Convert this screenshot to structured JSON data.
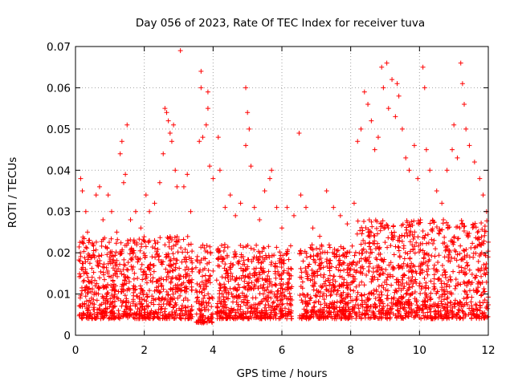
{
  "chart_data": {
    "type": "scatter",
    "title": "Day 056 of 2023, Rate Of TEC Index for receiver tuva",
    "xlabel": "GPS time / hours",
    "ylabel": "ROTI / TECUs",
    "xlim": [
      0,
      12
    ],
    "ylim": [
      0,
      0.07
    ],
    "x_ticks": [
      0,
      2,
      4,
      6,
      8,
      10,
      12
    ],
    "x_tick_labels": [
      "0",
      "2",
      "4",
      "6",
      "8",
      "10",
      "12"
    ],
    "y_ticks": [
      0,
      0.01,
      0.02,
      0.03,
      0.04,
      0.05,
      0.06,
      0.07
    ],
    "y_tick_labels": [
      "0",
      "0.01",
      "0.02",
      "0.03",
      "0.04",
      "0.05",
      "0.06",
      "0.07"
    ],
    "grid": true,
    "marker": "+",
    "color": "#ff0000",
    "series": [
      {
        "name": "ROTI",
        "points": [
          [
            0.15,
            0.038
          ],
          [
            0.2,
            0.035
          ],
          [
            0.3,
            0.03
          ],
          [
            0.35,
            0.025
          ],
          [
            0.5,
            0.022
          ],
          [
            0.6,
            0.034
          ],
          [
            0.7,
            0.036
          ],
          [
            0.8,
            0.028
          ],
          [
            0.95,
            0.034
          ],
          [
            1.05,
            0.03
          ],
          [
            1.2,
            0.025
          ],
          [
            1.3,
            0.044
          ],
          [
            1.35,
            0.047
          ],
          [
            1.4,
            0.037
          ],
          [
            1.45,
            0.039
          ],
          [
            1.5,
            0.051
          ],
          [
            1.6,
            0.028
          ],
          [
            1.75,
            0.03
          ],
          [
            1.9,
            0.026
          ],
          [
            2.05,
            0.034
          ],
          [
            2.15,
            0.03
          ],
          [
            2.3,
            0.032
          ],
          [
            2.45,
            0.037
          ],
          [
            2.55,
            0.044
          ],
          [
            2.6,
            0.055
          ],
          [
            2.65,
            0.054
          ],
          [
            2.7,
            0.052
          ],
          [
            2.75,
            0.049
          ],
          [
            2.8,
            0.047
          ],
          [
            2.85,
            0.051
          ],
          [
            2.9,
            0.04
          ],
          [
            2.95,
            0.036
          ],
          [
            3.05,
            0.069
          ],
          [
            3.15,
            0.036
          ],
          [
            3.25,
            0.039
          ],
          [
            3.35,
            0.03
          ],
          [
            3.65,
            0.064
          ],
          [
            3.65,
            0.06
          ],
          [
            3.6,
            0.047
          ],
          [
            3.7,
            0.048
          ],
          [
            3.85,
            0.059
          ],
          [
            3.85,
            0.055
          ],
          [
            3.8,
            0.051
          ],
          [
            3.9,
            0.041
          ],
          [
            4.0,
            0.038
          ],
          [
            4.15,
            0.048
          ],
          [
            4.2,
            0.04
          ],
          [
            4.35,
            0.031
          ],
          [
            4.5,
            0.034
          ],
          [
            4.65,
            0.029
          ],
          [
            4.8,
            0.032
          ],
          [
            4.95,
            0.06
          ],
          [
            5.0,
            0.054
          ],
          [
            5.05,
            0.05
          ],
          [
            4.95,
            0.046
          ],
          [
            5.1,
            0.041
          ],
          [
            5.2,
            0.031
          ],
          [
            5.35,
            0.028
          ],
          [
            5.5,
            0.035
          ],
          [
            5.65,
            0.038
          ],
          [
            5.7,
            0.04
          ],
          [
            5.85,
            0.031
          ],
          [
            6.0,
            0.026
          ],
          [
            6.15,
            0.031
          ],
          [
            6.35,
            0.029
          ],
          [
            6.5,
            0.049
          ],
          [
            6.55,
            0.034
          ],
          [
            6.7,
            0.031
          ],
          [
            6.9,
            0.026
          ],
          [
            7.1,
            0.024
          ],
          [
            7.3,
            0.035
          ],
          [
            7.5,
            0.031
          ],
          [
            7.7,
            0.029
          ],
          [
            7.9,
            0.027
          ],
          [
            8.1,
            0.032
          ],
          [
            8.2,
            0.047
          ],
          [
            8.3,
            0.05
          ],
          [
            8.4,
            0.059
          ],
          [
            8.5,
            0.056
          ],
          [
            8.6,
            0.052
          ],
          [
            8.7,
            0.045
          ],
          [
            8.8,
            0.048
          ],
          [
            8.9,
            0.065
          ],
          [
            8.95,
            0.06
          ],
          [
            9.05,
            0.066
          ],
          [
            9.1,
            0.055
          ],
          [
            9.2,
            0.062
          ],
          [
            9.3,
            0.053
          ],
          [
            9.35,
            0.061
          ],
          [
            9.4,
            0.058
          ],
          [
            9.5,
            0.05
          ],
          [
            9.6,
            0.043
          ],
          [
            9.7,
            0.04
          ],
          [
            9.85,
            0.046
          ],
          [
            9.95,
            0.038
          ],
          [
            10.1,
            0.065
          ],
          [
            10.15,
            0.06
          ],
          [
            10.2,
            0.045
          ],
          [
            10.3,
            0.04
          ],
          [
            10.5,
            0.035
          ],
          [
            10.65,
            0.032
          ],
          [
            10.8,
            0.04
          ],
          [
            10.95,
            0.045
          ],
          [
            11.0,
            0.051
          ],
          [
            11.1,
            0.043
          ],
          [
            11.2,
            0.066
          ],
          [
            11.25,
            0.061
          ],
          [
            11.3,
            0.056
          ],
          [
            11.35,
            0.05
          ],
          [
            11.45,
            0.046
          ],
          [
            11.6,
            0.042
          ],
          [
            11.75,
            0.038
          ],
          [
            11.85,
            0.034
          ],
          [
            11.95,
            0.03
          ]
        ],
        "dense_bands": [
          {
            "x_range": [
              0.1,
              3.4
            ],
            "y_range": [
              0.004,
              0.024
            ]
          },
          {
            "x_range": [
              3.5,
              4.0
            ],
            "y_range": [
              0.003,
              0.022
            ]
          },
          {
            "x_range": [
              4.1,
              6.3
            ],
            "y_range": [
              0.004,
              0.022
            ]
          },
          {
            "x_range": [
              6.5,
              8.1
            ],
            "y_range": [
              0.004,
              0.022
            ]
          },
          {
            "x_range": [
              8.1,
              12.0
            ],
            "y_range": [
              0.004,
              0.028
            ]
          }
        ]
      }
    ]
  }
}
